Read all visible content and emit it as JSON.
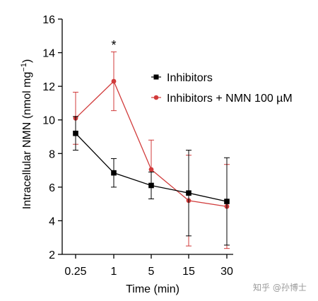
{
  "chart_data": {
    "type": "line",
    "xlabel": "Time (min)",
    "ylabel": "Intracellular NMN (nmol mg",
    "ylabel_sup": "−1",
    "ylabel_close": ")",
    "categories": [
      "0.25",
      "1",
      "5",
      "15",
      "30"
    ],
    "ylim": [
      2,
      16
    ],
    "yticks": [
      "2",
      "4",
      "6",
      "8",
      "10",
      "12",
      "14",
      "16"
    ],
    "grid": false,
    "legend_position": "right",
    "series": [
      {
        "name": "Inhibitors",
        "color": "#000000",
        "marker": "square",
        "values": [
          9.2,
          6.85,
          6.1,
          5.65,
          5.15
        ],
        "error": [
          1.0,
          0.85,
          0.8,
          2.55,
          2.6
        ]
      },
      {
        "name": "Inhibitors + NMN 100 µM",
        "color": "#d13b3b",
        "marker": "circle",
        "values": [
          10.1,
          12.3,
          7.05,
          5.2,
          4.85
        ],
        "error": [
          1.55,
          1.75,
          1.75,
          2.7,
          2.5
        ]
      }
    ],
    "annotations": [
      {
        "text": "*",
        "x": "1"
      }
    ]
  },
  "watermark": "知乎 @孙博士"
}
